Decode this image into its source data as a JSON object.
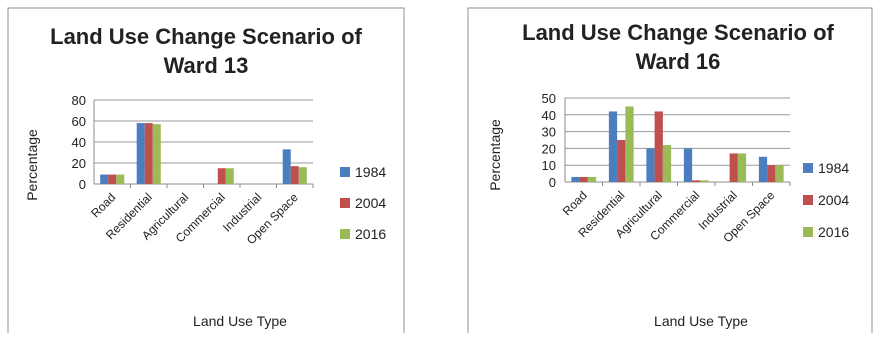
{
  "chart_data": [
    {
      "type": "bar",
      "title_lines": [
        "Land Use Change Scenario of",
        "Ward 13"
      ],
      "xlabel": "Land Use Type",
      "ylabel": "Percentage",
      "categories": [
        "Road",
        "Residential",
        "Agricultural",
        "Commercial",
        "Industrial",
        "Open Space"
      ],
      "ylim": [
        0,
        80
      ],
      "yticks": [
        0,
        20,
        40,
        60,
        80
      ],
      "grid": true,
      "legend_position": "right",
      "series": [
        {
          "name": "1984",
          "color": "#4a7ebf",
          "values": [
            9,
            58,
            0,
            0,
            0,
            33
          ]
        },
        {
          "name": "2004",
          "color": "#c0504d",
          "values": [
            9,
            58,
            0,
            15,
            0,
            17
          ]
        },
        {
          "name": "2016",
          "color": "#9bbb59",
          "values": [
            9,
            57,
            0,
            15,
            0,
            16
          ]
        }
      ]
    },
    {
      "type": "bar",
      "title_lines": [
        "Land Use Change Scenario of",
        "Ward 16"
      ],
      "xlabel": "Land Use Type",
      "ylabel": "Percentage",
      "categories": [
        "Road",
        "Residential",
        "Agricultural",
        "Commercial",
        "Industrial",
        "Open Space"
      ],
      "ylim": [
        0,
        50
      ],
      "yticks": [
        0,
        10,
        20,
        30,
        40,
        50
      ],
      "grid": true,
      "legend_position": "right",
      "series": [
        {
          "name": "1984",
          "color": "#4a7ebf",
          "values": [
            3,
            42,
            20,
            20,
            0,
            15
          ]
        },
        {
          "name": "2004",
          "color": "#c0504d",
          "values": [
            3,
            25,
            42,
            1,
            17,
            10
          ]
        },
        {
          "name": "2016",
          "color": "#9bbb59",
          "values": [
            3,
            45,
            22,
            1,
            17,
            10
          ]
        }
      ]
    }
  ]
}
